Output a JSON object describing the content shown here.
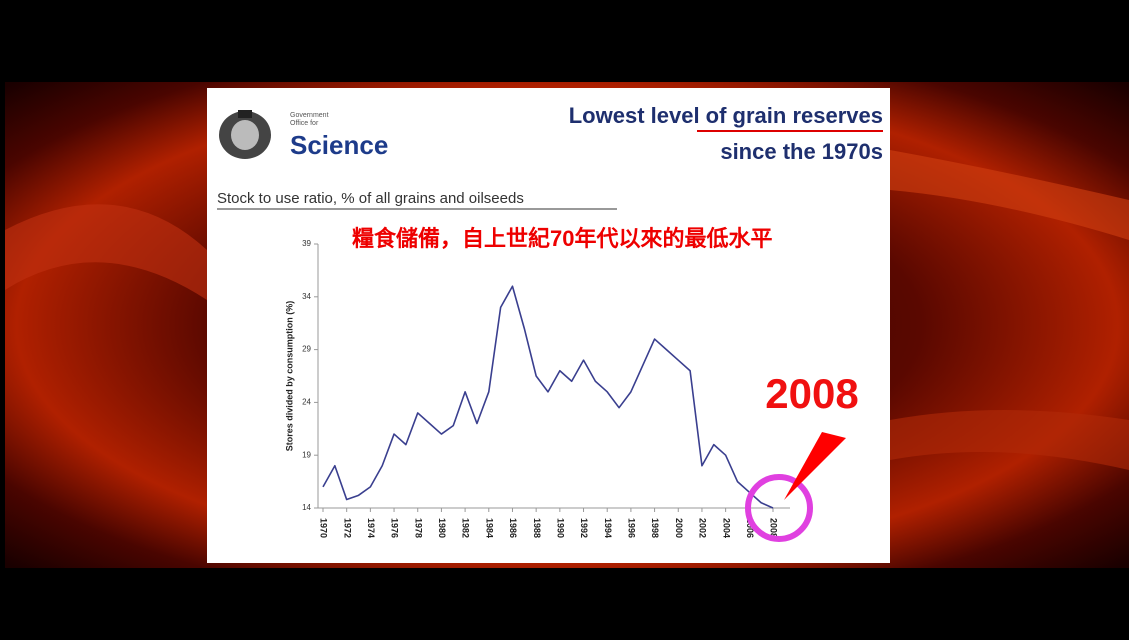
{
  "header": {
    "department_lines": [
      "Government",
      "Office for"
    ],
    "brand": "Science"
  },
  "chart_data": {
    "type": "line",
    "title": [
      "Lowest level of grain reserves",
      "since the 1970s"
    ],
    "subtitle": "Stock to use ratio, % of all grains and oilseeds",
    "annotation": "糧食儲備，自上世紀70年代以來的最低水平",
    "callout": "2008",
    "y_label": "Stores divided by consumption (%)",
    "x": [
      1970,
      1971,
      1972,
      1973,
      1974,
      1975,
      1976,
      1977,
      1978,
      1979,
      1980,
      1981,
      1982,
      1983,
      1984,
      1985,
      1986,
      1987,
      1988,
      1989,
      1990,
      1991,
      1992,
      1993,
      1994,
      1995,
      1996,
      1997,
      1998,
      1999,
      2000,
      2001,
      2002,
      2003,
      2004,
      2005,
      2006,
      2007,
      2008
    ],
    "values": [
      16,
      18,
      14.8,
      15.2,
      16,
      18,
      21,
      20,
      23,
      22,
      21,
      21.8,
      25,
      22,
      25,
      33,
      35,
      31,
      26.5,
      25,
      27,
      26,
      28,
      26,
      25,
      23.5,
      25,
      27.5,
      30,
      29,
      28,
      27,
      18,
      20,
      19,
      16.5,
      15.5,
      14.5,
      14
    ],
    "color": "#3a3f8f",
    "xlim": [
      1970,
      2008
    ],
    "xticks": [
      1970,
      1972,
      1974,
      1976,
      1978,
      1980,
      1982,
      1984,
      1986,
      1988,
      1990,
      1992,
      1994,
      1996,
      1998,
      2000,
      2002,
      2004,
      2006,
      2008
    ],
    "ylim": [
      14,
      39
    ],
    "yticks": [
      14,
      19,
      24,
      29,
      34,
      39
    ]
  }
}
